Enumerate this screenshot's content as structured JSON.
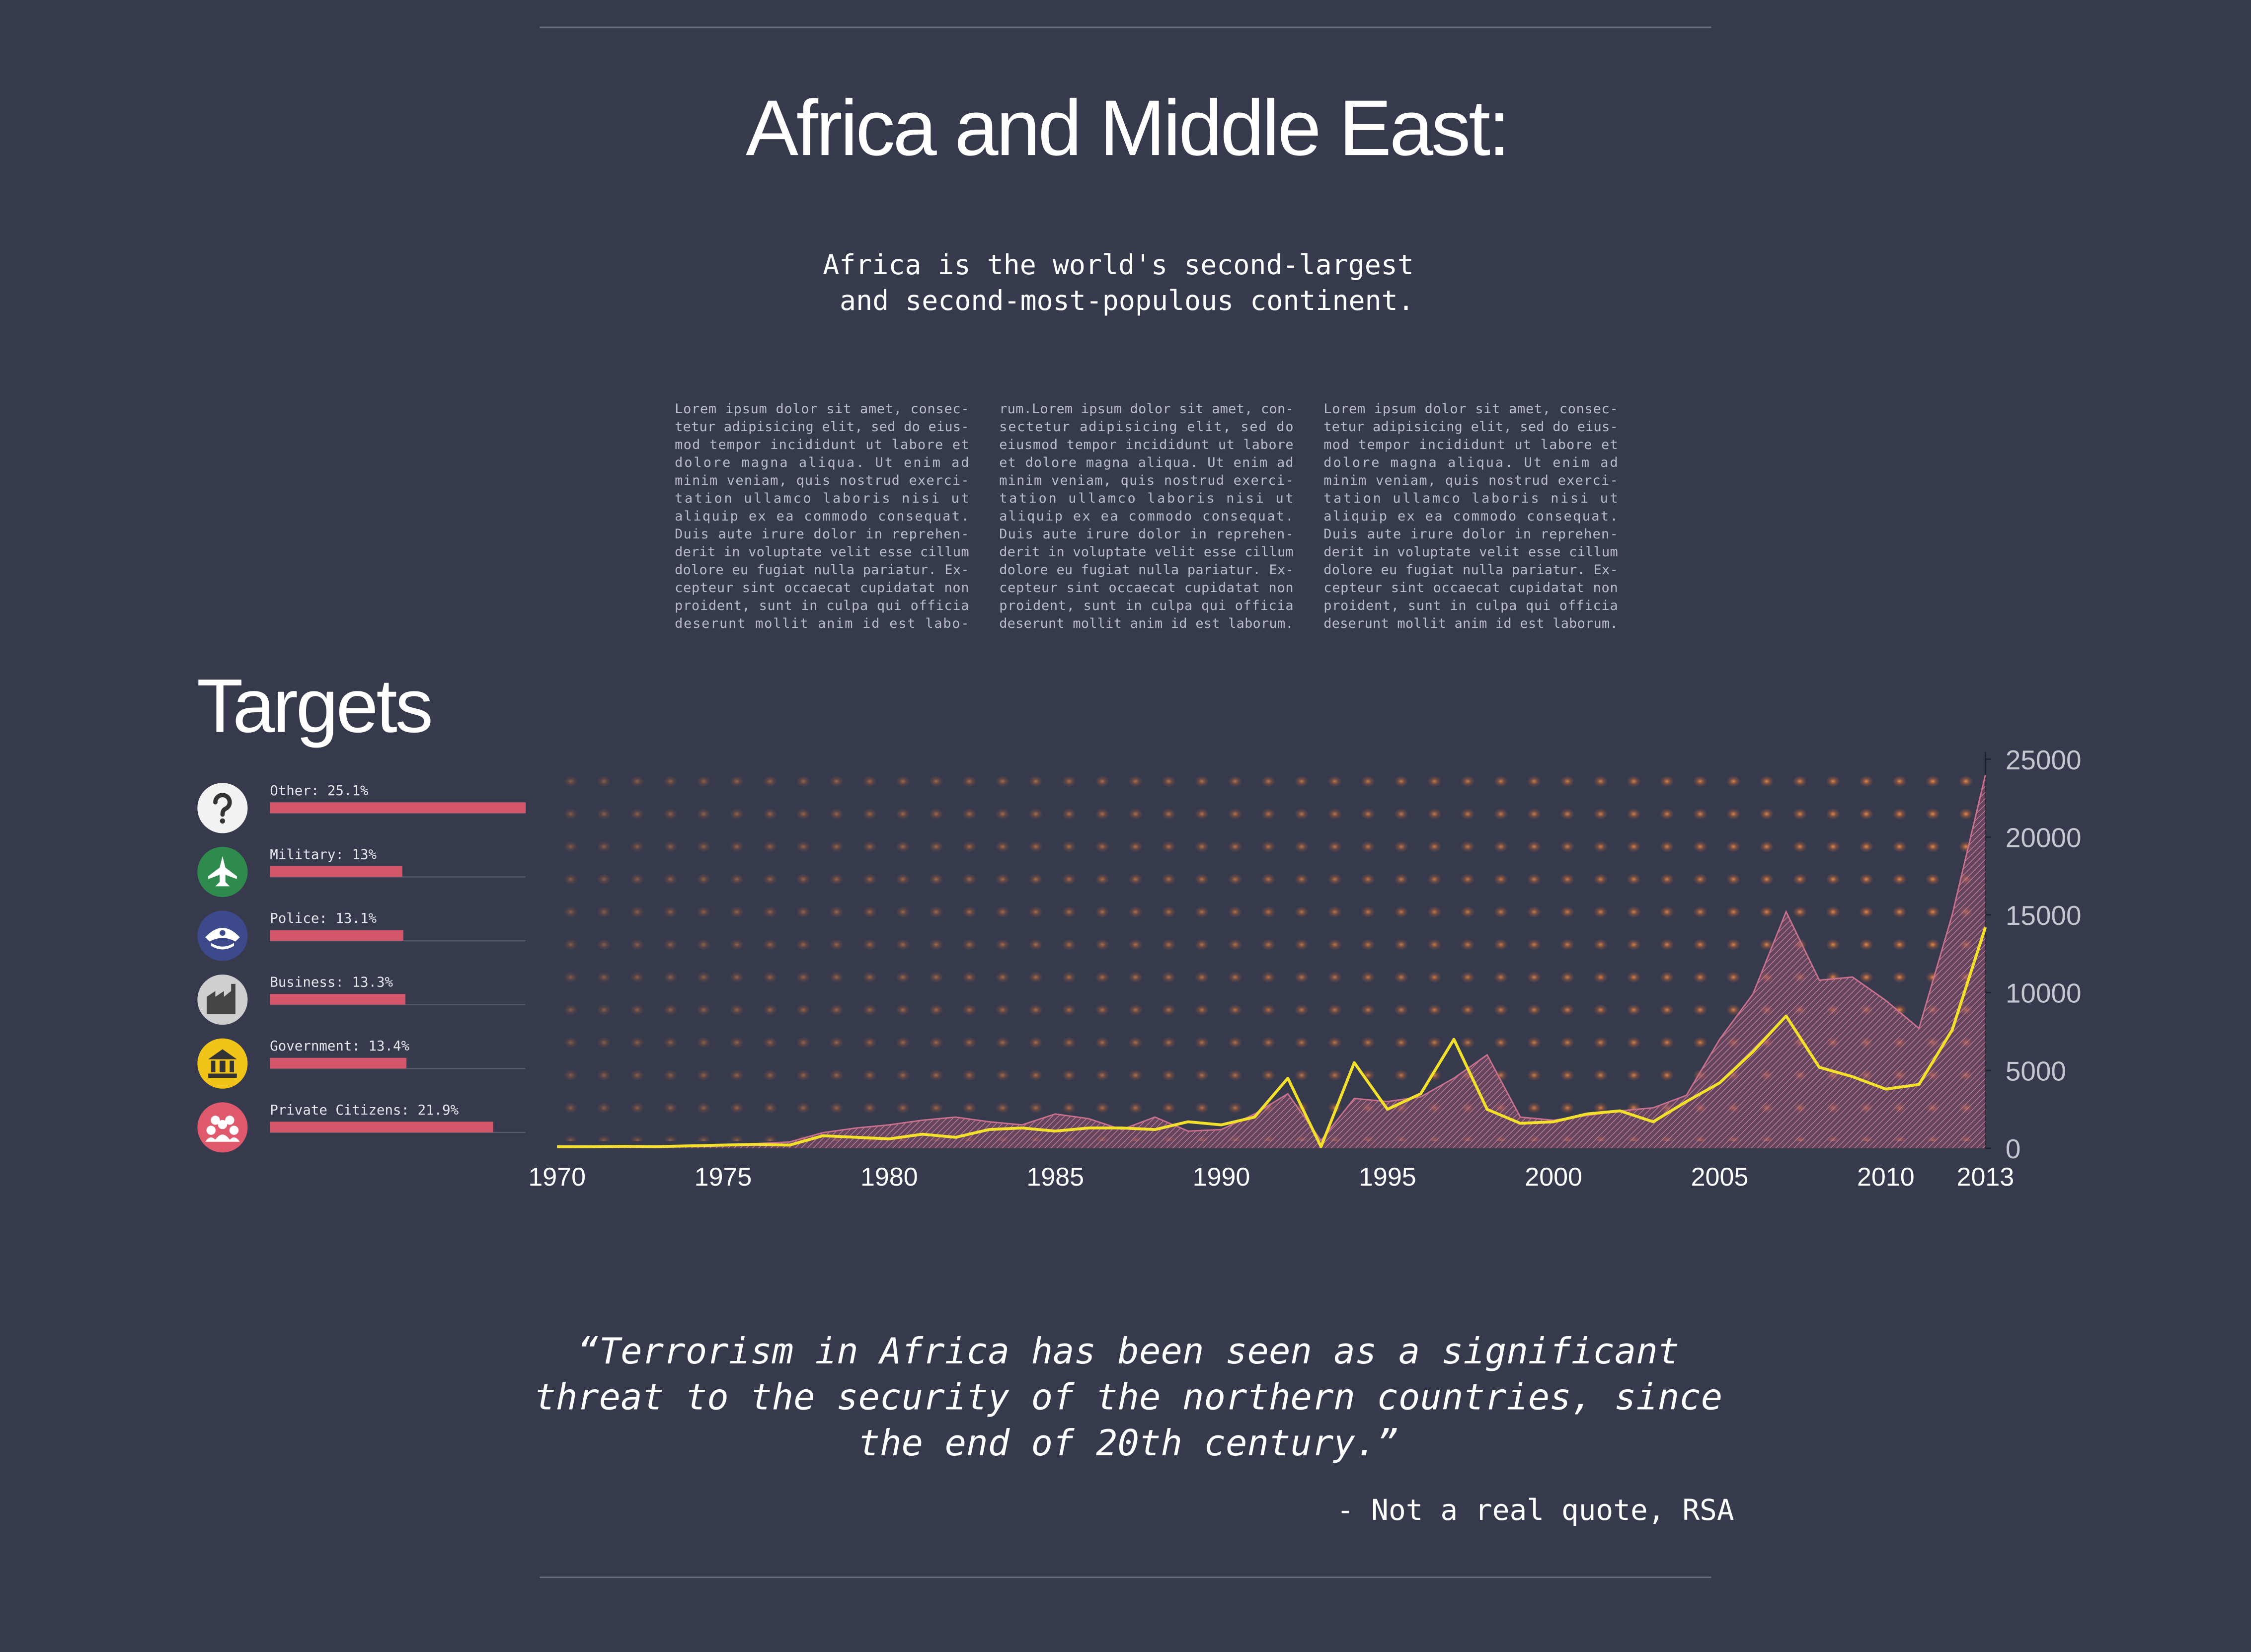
{
  "header": {
    "title": "Africa and Middle East:",
    "subtitle": [
      "Africa is the world's second-largest",
      "and second-most-populous continent."
    ]
  },
  "body": {
    "columns": [
      [
        "Lorem ipsum dolor sit amet, consec-",
        "tetur adipisicing elit, sed do eius-",
        "mod tempor incididunt ut labore et",
        "dolore magna aliqua. Ut enim ad",
        "minim veniam, quis nostrud exerci-",
        "tation ullamco laboris nisi ut",
        "aliquip ex ea commodo consequat.",
        "Duis aute irure dolor in reprehen-",
        "derit in voluptate velit esse cillum",
        "dolore eu fugiat nulla pariatur. Ex-",
        "cepteur sint occaecat cupidatat non",
        "proident, sunt in culpa qui officia",
        "deserunt mollit anim id est labo-"
      ],
      [
        "rum.Lorem ipsum dolor sit amet, con-",
        "sectetur adipisicing elit, sed do",
        "eiusmod tempor incididunt ut labore",
        "et dolore magna aliqua. Ut enim ad",
        "minim veniam, quis nostrud exerci-",
        "tation ullamco laboris nisi ut",
        "aliquip ex ea commodo consequat.",
        "Duis aute irure dolor in reprehen-",
        "derit in voluptate velit esse cillum",
        "dolore eu fugiat nulla pariatur. Ex-",
        "cepteur sint occaecat cupidatat non",
        "proident, sunt in culpa qui officia",
        "deserunt mollit anim id est laborum."
      ],
      [
        "Lorem ipsum dolor sit amet, consec-",
        "tetur adipisicing elit, sed do eius-",
        "mod tempor incididunt ut labore et",
        "dolore magna aliqua. Ut enim ad",
        "minim veniam, quis nostrud exerci-",
        "tation ullamco laboris nisi ut",
        "aliquip ex ea commodo consequat.",
        "Duis aute irure dolor in reprehen-",
        "derit in voluptate velit esse cillum",
        "dolore eu fugiat nulla pariatur. Ex-",
        "cepteur sint occaecat cupidatat non",
        "proident, sunt in culpa qui officia",
        "deserunt mollit anim id est laborum."
      ]
    ]
  },
  "chart_data": [
    {
      "type": "bar",
      "orientation": "horizontal",
      "title": "Targets",
      "categories": [
        "Other: 25.1%",
        "Military: 13%",
        "Police: 13.1%",
        "Business: 13.3%",
        "Government: 13.4%",
        "Private Citizens: 21.9%"
      ],
      "values": [
        25.1,
        13,
        13.1,
        13.3,
        13.4,
        21.9
      ],
      "color": "#d4566a"
    },
    {
      "type": "line",
      "x": [
        1970,
        1971,
        1972,
        1973,
        1974,
        1975,
        1976,
        1977,
        1978,
        1979,
        1980,
        1981,
        1982,
        1983,
        1984,
        1985,
        1986,
        1987,
        1988,
        1989,
        1990,
        1991,
        1992,
        1993,
        1994,
        1995,
        1996,
        1997,
        1998,
        1999,
        2000,
        2001,
        2002,
        2003,
        2004,
        2005,
        2006,
        2007,
        2008,
        2009,
        2010,
        2011,
        2012,
        2013
      ],
      "series": [
        {
          "style": "area",
          "color": "#c8708c",
          "values": [
            100,
            100,
            150,
            150,
            200,
            250,
            300,
            400,
            1000,
            1300,
            1500,
            1800,
            2000,
            1700,
            1500,
            2200,
            1900,
            1200,
            2000,
            1100,
            1200,
            2200,
            3500,
            500,
            3200,
            3000,
            3300,
            4500,
            6000,
            2000,
            1800,
            2100,
            2400,
            2600,
            3400,
            7000,
            9900,
            15200,
            10800,
            11000,
            9500,
            7700,
            15000,
            24000
          ]
        },
        {
          "style": "line",
          "color": "#f2e02a",
          "values": [
            100,
            100,
            120,
            100,
            150,
            200,
            250,
            200,
            800,
            700,
            600,
            900,
            700,
            1200,
            1300,
            1100,
            1300,
            1300,
            1200,
            1700,
            1500,
            2000,
            4500,
            100,
            5500,
            2500,
            3500,
            7000,
            2500,
            1600,
            1700,
            2200,
            2400,
            1700,
            3000,
            4200,
            6200,
            8500,
            5200,
            4600,
            3800,
            4100,
            7600,
            14200
          ]
        }
      ],
      "xlim": [
        1970,
        2013
      ],
      "xticks": [
        1970,
        1975,
        1980,
        1985,
        1990,
        1995,
        2000,
        2005,
        2010,
        2013
      ],
      "ylim": [
        0,
        25000
      ],
      "yticks": [
        0,
        5000,
        10000,
        15000,
        20000,
        25000
      ],
      "y_axis_side": "right"
    }
  ],
  "quote": {
    "lines": [
      "“Terrorism in Africa has been seen as a significant",
      "threat to the security of the northern countries, since",
      "the end of 20th century.”"
    ],
    "attribution": "- Not a real quote, RSA"
  }
}
